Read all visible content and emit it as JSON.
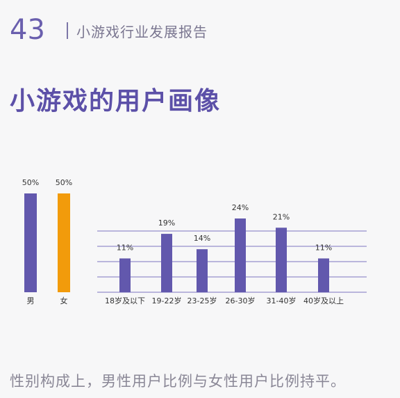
{
  "header": {
    "page_number": "43",
    "report_title": "小游戏行业发展报告"
  },
  "section_title": "小游戏的用户画像",
  "footnote": "性别构成上，男性用户比例与女性用户比例持平。",
  "colors": {
    "purple": "#6258ad",
    "orange": "#f29b0b",
    "grid": "#7d75bf",
    "text": "#333333"
  },
  "chart_data": [
    {
      "type": "bar",
      "title": "",
      "categories": [
        "男",
        "女"
      ],
      "values": [
        50,
        50
      ],
      "value_labels": [
        "50%",
        "50%"
      ],
      "colors": [
        "#6258ad",
        "#f29b0b"
      ],
      "ylim": [
        0,
        50
      ],
      "grid": false
    },
    {
      "type": "bar",
      "title": "",
      "categories": [
        "18岁及以下",
        "19-22岁",
        "23-25岁",
        "26-30岁",
        "31-40岁",
        "40岁及以上"
      ],
      "values": [
        11,
        19,
        14,
        24,
        21,
        11
      ],
      "value_labels": [
        "11%",
        "19%",
        "14%",
        "24%",
        "21%",
        "11%"
      ],
      "colors": [
        "#6258ad"
      ],
      "ylim": [
        0,
        24
      ],
      "grid": true
    }
  ]
}
